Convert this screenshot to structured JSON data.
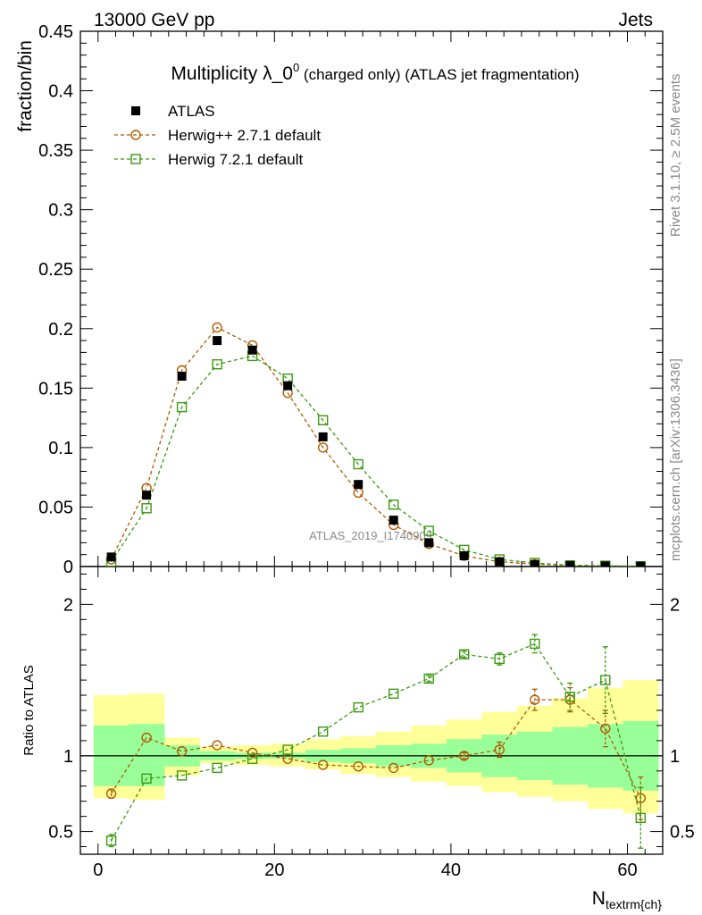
{
  "header": {
    "left": "13000 GeV pp",
    "right": "Jets"
  },
  "side_labels": {
    "rivet": "Rivet 3.1.10, ≥ 2.5M events",
    "mcplots": "mcplots.cern.ch [arXiv:1306.3436]"
  },
  "watermark": "ATLAS_2019_I1740909",
  "chart_data": {
    "type": "line",
    "title_main": "Multiplicity λ_0",
    "title_sup": "0",
    "title_rest": " (charged only) (ATLAS jet fragmentation)",
    "xlabel_main": "N",
    "xlabel_sub": "textrm{ch}",
    "ylabel": "fraction/bin",
    "ratio_ylabel": "Ratio to ATLAS",
    "xlim": [
      -2,
      64
    ],
    "ylim": [
      0,
      0.45
    ],
    "ratio_ylim": [
      0.35,
      2.25
    ],
    "x_ticks": [
      0,
      20,
      40,
      60
    ],
    "y_ticks": [
      0,
      0.05,
      0.1,
      0.15,
      0.2,
      0.25,
      0.3,
      0.35,
      0.4,
      0.45
    ],
    "y_tick_labels": [
      "0",
      "0.05",
      "0.1",
      "0.15",
      "0.2",
      "0.25",
      "0.3",
      "0.35",
      "0.4",
      "0.45"
    ],
    "ratio_ticks": [
      0.5,
      1,
      2
    ],
    "ratio_tick_labels": [
      "0.5",
      "1",
      "2"
    ],
    "bins": [
      [
        -0.5,
        3.5
      ],
      [
        3.5,
        7.5
      ],
      [
        7.5,
        11.5
      ],
      [
        11.5,
        15.5
      ],
      [
        15.5,
        19.5
      ],
      [
        19.5,
        23.5
      ],
      [
        23.5,
        27.5
      ],
      [
        27.5,
        31.5
      ],
      [
        31.5,
        35.5
      ],
      [
        35.5,
        39.5
      ],
      [
        39.5,
        43.5
      ],
      [
        43.5,
        47.5
      ],
      [
        47.5,
        51.5
      ],
      [
        51.5,
        55.5
      ],
      [
        55.5,
        59.5
      ],
      [
        59.5,
        63.5
      ]
    ],
    "x": [
      1.5,
      5.5,
      9.5,
      13.5,
      17.5,
      21.5,
      25.5,
      29.5,
      33.5,
      37.5,
      41.5,
      45.5,
      49.5,
      53.5,
      57.5,
      61.5
    ],
    "legend": [
      "ATLAS",
      "Herwig++ 2.7.1 default",
      "Herwig 7.2.1 default"
    ],
    "series": [
      {
        "name": "ATLAS",
        "color": "#000000",
        "marker": "filled-square",
        "values": [
          0.008,
          0.06,
          0.16,
          0.19,
          0.182,
          0.152,
          0.109,
          0.069,
          0.039,
          0.02,
          0.009,
          0.004,
          0.0015,
          0.0008,
          0.0005,
          0.0003
        ]
      },
      {
        "name": "Herwig++ 2.7.1 default",
        "color": "#b25a00",
        "marker": "open-circle",
        "values": [
          0.006,
          0.066,
          0.165,
          0.201,
          0.186,
          0.146,
          0.1,
          0.062,
          0.035,
          0.019,
          0.009,
          0.004,
          0.002,
          0.001,
          0.0006,
          0.0002
        ],
        "ratio": [
          0.75,
          1.12,
          1.03,
          1.07,
          1.02,
          0.98,
          0.94,
          0.93,
          0.92,
          0.97,
          1.0,
          1.04,
          1.37,
          1.37,
          1.18,
          0.72
        ],
        "ratio_err": [
          0.03,
          0.01,
          0.01,
          0.01,
          0.01,
          0.01,
          0.01,
          0.01,
          0.01,
          0.01,
          0.02,
          0.05,
          0.07,
          0.08,
          0.12,
          0.14
        ]
      },
      {
        "name": "Herwig 7.2.1 default",
        "color": "#3a9a10",
        "marker": "open-square",
        "values": [
          0.004,
          0.049,
          0.134,
          0.17,
          0.177,
          0.158,
          0.123,
          0.086,
          0.052,
          0.03,
          0.014,
          0.006,
          0.003,
          0.001,
          0.0007,
          0.0002
        ],
        "ratio": [
          0.44,
          0.85,
          0.87,
          0.92,
          0.98,
          1.04,
          1.16,
          1.32,
          1.41,
          1.51,
          1.67,
          1.64,
          1.74,
          1.39,
          1.5,
          0.59
        ],
        "ratio_err": [
          0.04,
          0.01,
          0.01,
          0.01,
          0.01,
          0.01,
          0.01,
          0.01,
          0.01,
          0.02,
          0.02,
          0.04,
          0.06,
          0.09,
          0.22,
          0.2
        ]
      }
    ],
    "ratio_band_inner": [
      [
        0.8,
        1.2
      ],
      [
        0.8,
        1.21
      ],
      [
        0.93,
        1.07
      ],
      [
        0.97,
        1.03
      ],
      [
        0.98,
        1.02
      ],
      [
        0.98,
        1.02
      ],
      [
        0.96,
        1.04
      ],
      [
        0.95,
        1.05
      ],
      [
        0.93,
        1.07
      ],
      [
        0.92,
        1.08
      ],
      [
        0.89,
        1.11
      ],
      [
        0.86,
        1.14
      ],
      [
        0.84,
        1.16
      ],
      [
        0.81,
        1.19
      ],
      [
        0.79,
        1.21
      ],
      [
        0.77,
        1.23
      ]
    ],
    "ratio_band_outer": [
      [
        0.72,
        1.4
      ],
      [
        0.71,
        1.41
      ],
      [
        0.87,
        1.12
      ],
      [
        0.95,
        1.06
      ],
      [
        0.94,
        1.07
      ],
      [
        0.93,
        1.08
      ],
      [
        0.91,
        1.11
      ],
      [
        0.88,
        1.13
      ],
      [
        0.86,
        1.16
      ],
      [
        0.83,
        1.2
      ],
      [
        0.8,
        1.24
      ],
      [
        0.76,
        1.29
      ],
      [
        0.73,
        1.33
      ],
      [
        0.7,
        1.38
      ],
      [
        0.65,
        1.45
      ],
      [
        0.62,
        1.5
      ]
    ]
  }
}
